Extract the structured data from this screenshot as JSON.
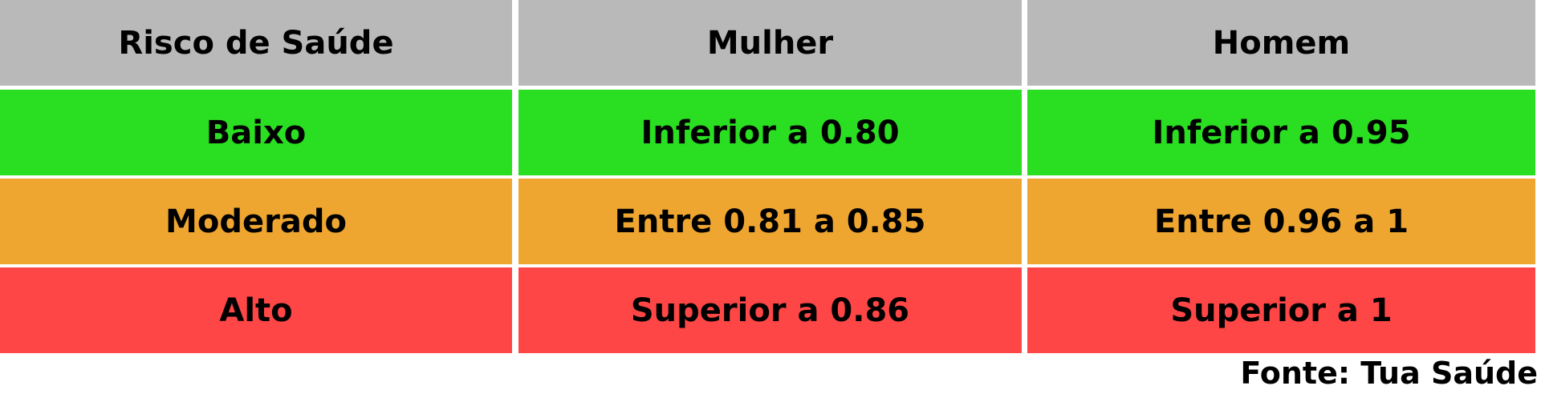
{
  "colors": {
    "header": "#b9b9b9",
    "low": "#2ade22",
    "moderate": "#efa630",
    "high": "#ff4646",
    "text": "#000000",
    "grid": "#ffffff"
  },
  "table": {
    "headers": [
      "Risco de Saúde",
      "Mulher",
      "Homem"
    ],
    "rows": [
      {
        "level": "Baixo",
        "woman": "Inferior a 0.80",
        "man": "Inferior a 0.95"
      },
      {
        "level": "Moderado",
        "woman": "Entre 0.81 a 0.85",
        "man": "Entre 0.96 a 1"
      },
      {
        "level": "Alto",
        "woman": "Superior a 0.86",
        "man": "Superior a 1"
      }
    ]
  },
  "source": "Fonte: Tua Saúde"
}
